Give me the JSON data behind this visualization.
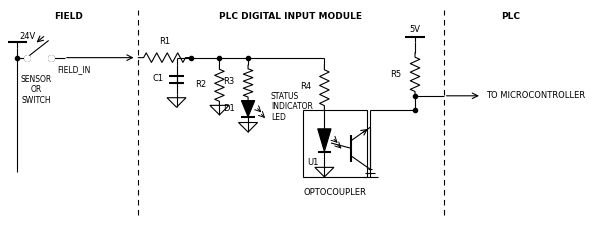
{
  "title_field": "FIELD",
  "title_plc_module": "PLC DIGITAL INPUT MODULE",
  "title_plc": "PLC",
  "label_24v": "24V",
  "label_sensor": "SENSOR\nOR\nSWITCH",
  "label_field_in": "FIELD_IN",
  "label_r1": "R1",
  "label_r2": "R2",
  "label_r3": "R3",
  "label_r4": "R4",
  "label_r5": "R5",
  "label_c1": "C1",
  "label_d1": "D1",
  "label_u1": "U1",
  "label_5v": "5V",
  "label_status": "STATUS\nINDICATOR\nLED",
  "label_optocoupler": "OPTOCOUPLER",
  "label_to_micro": "TO MICROCONTROLLER",
  "bg_color": "#ffffff",
  "line_color": "#000000",
  "figsize": [
    6.0,
    2.25
  ],
  "dpi": 100
}
